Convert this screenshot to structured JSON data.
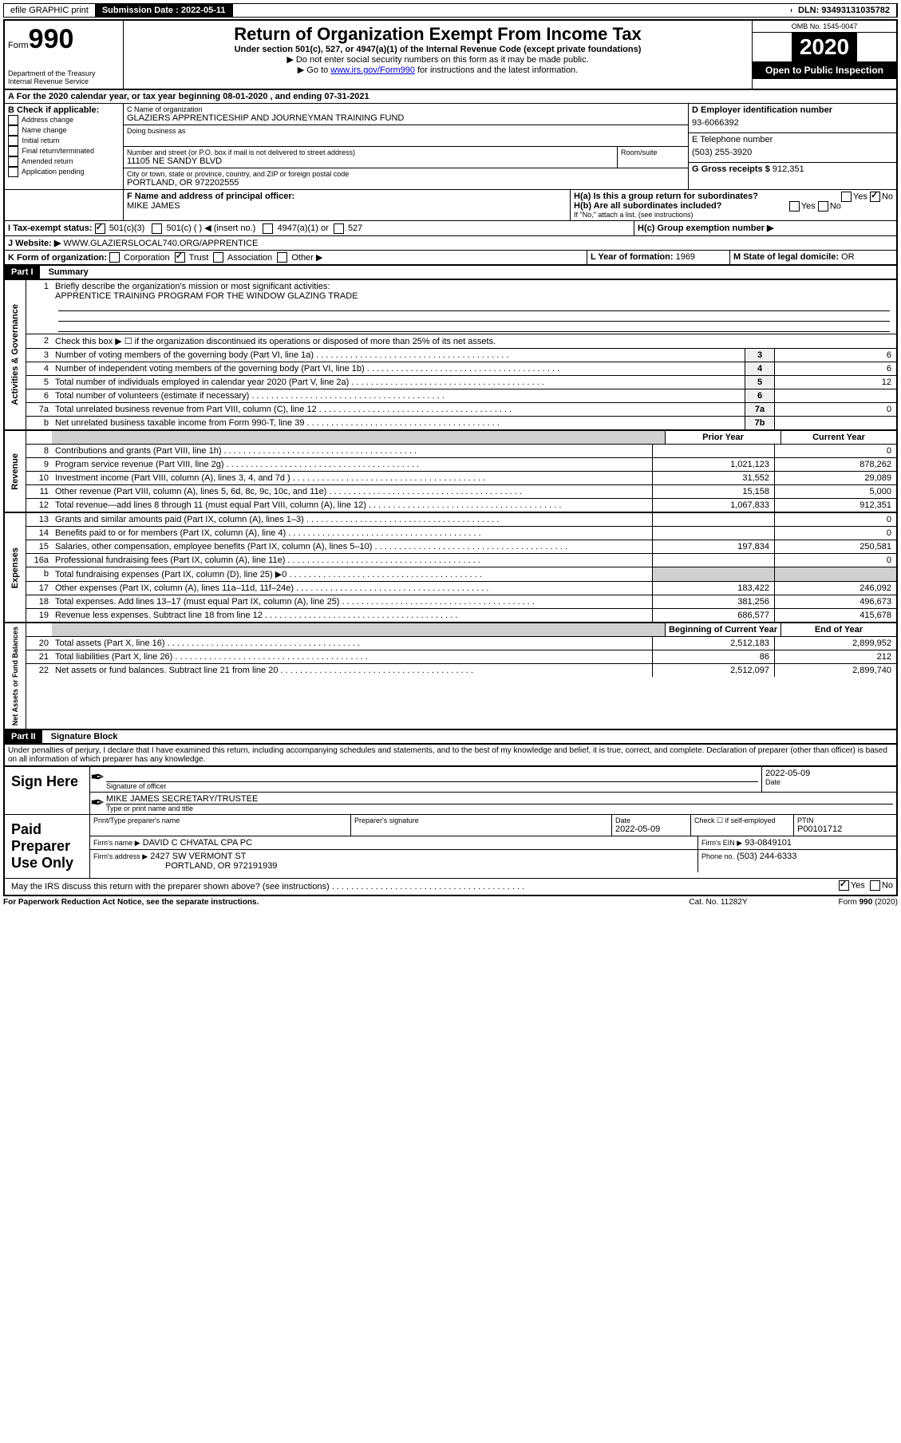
{
  "topbar": {
    "efile": "efile GRAPHIC print",
    "submission_label": "Submission Date :",
    "submission_date": "2022-05-11",
    "dln_label": "DLN:",
    "dln": "93493131035782"
  },
  "header": {
    "form_word": "Form",
    "form_number": "990",
    "title": "Return of Organization Exempt From Income Tax",
    "subtitle": "Under section 501(c), 527, or 4947(a)(1) of the Internal Revenue Code (except private foundations)",
    "note1": "▶ Do not enter social security numbers on this form as it may be made public.",
    "note2_pre": "▶ Go to ",
    "note2_link": "www.irs.gov/Form990",
    "note2_post": " for instructions and the latest information.",
    "dept": "Department of the Treasury\nInternal Revenue Service",
    "omb_label": "OMB No.",
    "omb": "1545-0047",
    "year": "2020",
    "open": "Open to Public Inspection"
  },
  "periodA": {
    "text_pre": "For the 2020 calendar year, or tax year beginning ",
    "begin": "08-01-2020",
    "mid": " , and ending ",
    "end": "07-31-2021"
  },
  "B": {
    "label": "B Check if applicable:",
    "opts": [
      "Address change",
      "Name change",
      "Initial return",
      "Final return/terminated",
      "Amended return",
      "Application pending"
    ]
  },
  "C": {
    "name_label": "C Name of organization",
    "name": "GLAZIERS APPRENTICESHIP AND JOURNEYMAN TRAINING FUND",
    "dba_label": "Doing business as",
    "street_label": "Number and street (or P.O. box if mail is not delivered to street address)",
    "room_label": "Room/suite",
    "street": "11105 NE SANDY BLVD",
    "city_label": "City or town, state or province, country, and ZIP or foreign postal code",
    "city": "PORTLAND, OR  972202555"
  },
  "D": {
    "label": "D Employer identification number",
    "value": "93-6066392"
  },
  "E": {
    "label": "E Telephone number",
    "value": "(503) 255-3920"
  },
  "F": {
    "label": "F Name and address of principal officer:",
    "value": "MIKE JAMES"
  },
  "G": {
    "label": "G Gross receipts $",
    "value": "912,351"
  },
  "H": {
    "a_label": "H(a)  Is this a group return for subordinates?",
    "b_label": "H(b)  Are all subordinates included?",
    "b_note": "If \"No,\" attach a list. (see instructions)",
    "c_label": "H(c)  Group exemption number ▶",
    "yes": "Yes",
    "no": "No"
  },
  "I": {
    "label": "I  Tax-exempt status:",
    "o1": "501(c)(3)",
    "o2": "501(c) (    ) ◀ (insert no.)",
    "o3": "4947(a)(1) or",
    "o4": "527"
  },
  "J": {
    "label": "J  Website: ▶",
    "value": "WWW.GLAZIERSLOCAL740.ORG/APPRENTICE"
  },
  "K": {
    "label": "K Form of organization:",
    "corp": "Corporation",
    "trust": "Trust",
    "assoc": "Association",
    "other": "Other ▶"
  },
  "L": {
    "label": "L Year of formation:",
    "value": "1969"
  },
  "M": {
    "label": "M State of legal domicile:",
    "value": "OR"
  },
  "part1": {
    "header": "Part I",
    "title": "Summary",
    "q1": "Briefly describe the organization's mission or most significant activities:",
    "q1_ans": "APPRENTICE TRAINING PROGRAM FOR THE WINDOW GLAZING TRADE",
    "q2": "Check this box ▶ ☐  if the organization discontinued its operations or disposed of more than 25% of its net assets.",
    "lines_ag": [
      {
        "no": "3",
        "desc": "Number of voting members of the governing body (Part VI, line 1a)",
        "box": "3",
        "val": "6"
      },
      {
        "no": "4",
        "desc": "Number of independent voting members of the governing body (Part VI, line 1b)",
        "box": "4",
        "val": "6"
      },
      {
        "no": "5",
        "desc": "Total number of individuals employed in calendar year 2020 (Part V, line 2a)",
        "box": "5",
        "val": "12"
      },
      {
        "no": "6",
        "desc": "Total number of volunteers (estimate if necessary)",
        "box": "6",
        "val": ""
      },
      {
        "no": "7a",
        "desc": "Total unrelated business revenue from Part VIII, column (C), line 12",
        "box": "7a",
        "val": "0"
      },
      {
        "no": "b",
        "desc": "Net unrelated business taxable income from Form 990-T, line 39",
        "box": "7b",
        "val": ""
      }
    ],
    "col_prior": "Prior Year",
    "col_current": "Current Year",
    "revenue": [
      {
        "no": "8",
        "desc": "Contributions and grants (Part VIII, line 1h)",
        "prior": "",
        "curr": "0"
      },
      {
        "no": "9",
        "desc": "Program service revenue (Part VIII, line 2g)",
        "prior": "1,021,123",
        "curr": "878,262"
      },
      {
        "no": "10",
        "desc": "Investment income (Part VIII, column (A), lines 3, 4, and 7d )",
        "prior": "31,552",
        "curr": "29,089"
      },
      {
        "no": "11",
        "desc": "Other revenue (Part VIII, column (A), lines 5, 6d, 8c, 9c, 10c, and 11e)",
        "prior": "15,158",
        "curr": "5,000"
      },
      {
        "no": "12",
        "desc": "Total revenue—add lines 8 through 11 (must equal Part VIII, column (A), line 12)",
        "prior": "1,067,833",
        "curr": "912,351"
      }
    ],
    "expenses": [
      {
        "no": "13",
        "desc": "Grants and similar amounts paid (Part IX, column (A), lines 1–3)",
        "prior": "",
        "curr": "0"
      },
      {
        "no": "14",
        "desc": "Benefits paid to or for members (Part IX, column (A), line 4)",
        "prior": "",
        "curr": "0"
      },
      {
        "no": "15",
        "desc": "Salaries, other compensation, employee benefits (Part IX, column (A), lines 5–10)",
        "prior": "197,834",
        "curr": "250,581"
      },
      {
        "no": "16a",
        "desc": "Professional fundraising fees (Part IX, column (A), line 11e)",
        "prior": "",
        "curr": "0"
      },
      {
        "no": "b",
        "desc": "Total fundraising expenses (Part IX, column (D), line 25) ▶0",
        "prior": "__shade__",
        "curr": "__shade__"
      },
      {
        "no": "17",
        "desc": "Other expenses (Part IX, column (A), lines 11a–11d, 11f–24e)",
        "prior": "183,422",
        "curr": "246,092"
      },
      {
        "no": "18",
        "desc": "Total expenses. Add lines 13–17 (must equal Part IX, column (A), line 25)",
        "prior": "381,256",
        "curr": "496,673"
      },
      {
        "no": "19",
        "desc": "Revenue less expenses. Subtract line 18 from line 12",
        "prior": "686,577",
        "curr": "415,678"
      }
    ],
    "col_begin": "Beginning of Current Year",
    "col_end": "End of Year",
    "netassets": [
      {
        "no": "20",
        "desc": "Total assets (Part X, line 16)",
        "prior": "2,512,183",
        "curr": "2,899,952"
      },
      {
        "no": "21",
        "desc": "Total liabilities (Part X, line 26)",
        "prior": "86",
        "curr": "212"
      },
      {
        "no": "22",
        "desc": "Net assets or fund balances. Subtract line 21 from line 20",
        "prior": "2,512,097",
        "curr": "2,899,740"
      }
    ],
    "section_labels": {
      "ag": "Activities & Governance",
      "rev": "Revenue",
      "exp": "Expenses",
      "net": "Net Assets or Fund Balances"
    }
  },
  "part2": {
    "header": "Part II",
    "title": "Signature Block",
    "perjury": "Under penalties of perjury, I declare that I have examined this return, including accompanying schedules and statements, and to the best of my knowledge and belief, it is true, correct, and complete. Declaration of preparer (other than officer) is based on all information of which preparer has any knowledge.",
    "sign_here": "Sign Here",
    "sig_officer": "Signature of officer",
    "date_label": "Date",
    "sig_date": "2022-05-09",
    "officer_name": "MIKE JAMES  SECRETARY/TRUSTEE",
    "type_name": "Type or print name and title",
    "paid": "Paid Preparer Use Only",
    "prep_name_label": "Print/Type preparer's name",
    "prep_sig_label": "Preparer's signature",
    "prep_date": "2022-05-09",
    "self_emp": "Check ☐  if self-employed",
    "ptin_label": "PTIN",
    "ptin": "P00101712",
    "firm_name_label": "Firm's name    ▶",
    "firm_name": "DAVID C CHVATAL CPA PC",
    "firm_ein_label": "Firm's EIN ▶",
    "firm_ein": "93-0849101",
    "firm_addr_label": "Firm's address ▶",
    "firm_addr1": "2427 SW VERMONT ST",
    "firm_addr2": "PORTLAND, OR  972191939",
    "firm_phone_label": "Phone no.",
    "firm_phone": "(503) 244-6333",
    "discuss": "May the IRS discuss this return with the preparer shown above? (see instructions)",
    "paperwork": "For Paperwork Reduction Act Notice, see the separate instructions.",
    "catno": "Cat. No. 11282Y",
    "formfoot": "Form 990 (2020)"
  }
}
